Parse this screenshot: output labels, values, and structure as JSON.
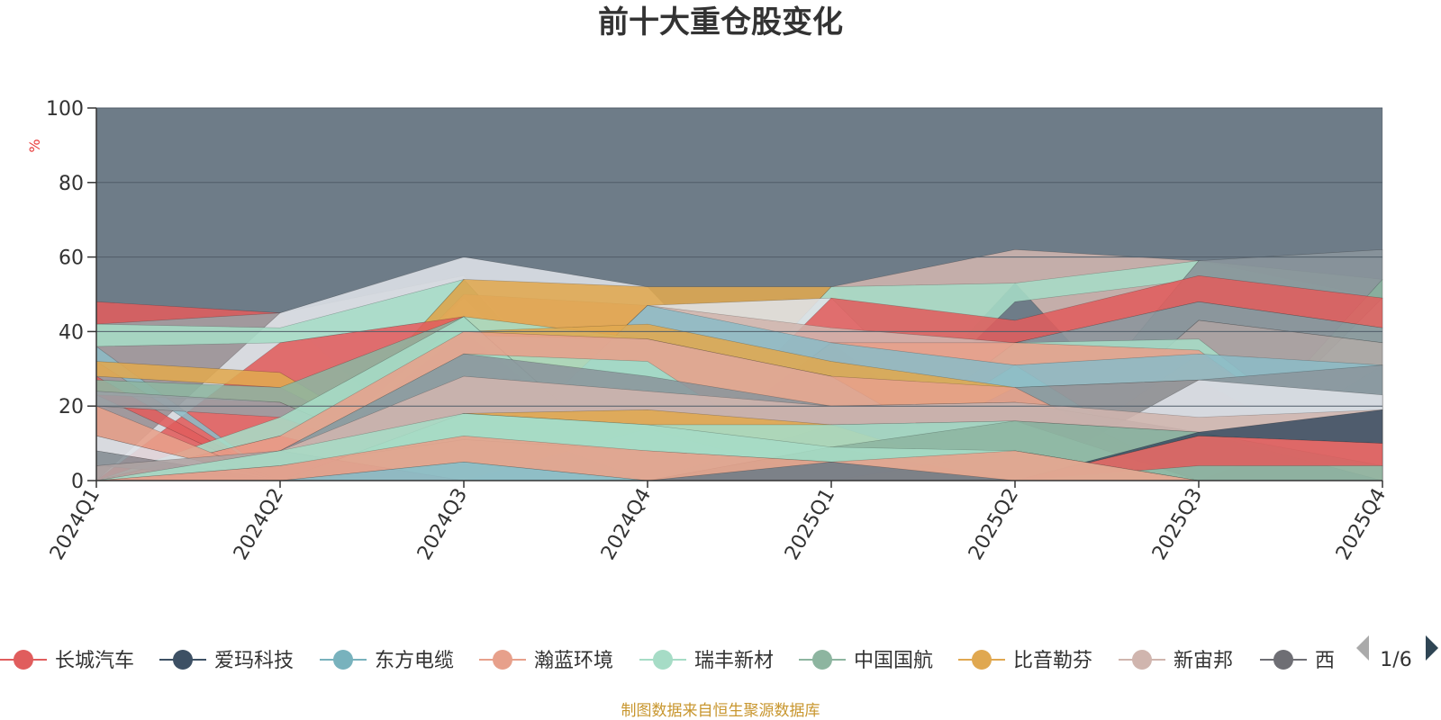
{
  "chart_data": {
    "type": "area",
    "stacked": true,
    "title": "前十大重仓股变化",
    "y_unit": "%",
    "ylim": [
      0,
      100
    ],
    "yticks": [
      0,
      20,
      40,
      60,
      80,
      100
    ],
    "categories": [
      "2024Q1",
      "2024Q2",
      "2024Q3",
      "2024Q4",
      "2025Q1",
      "2025Q2",
      "2025Q3",
      "2025Q4"
    ],
    "grid": true,
    "series": [
      {
        "name": "长城汽车",
        "color": "#e05d5d"
      },
      {
        "name": "爱玛科技",
        "color": "#3d5064"
      },
      {
        "name": "东方电缆",
        "color": "#78b2bd"
      },
      {
        "name": "瀚蓝环境",
        "color": "#e7a08b"
      },
      {
        "name": "瑞丰新材",
        "color": "#a6dcc6"
      },
      {
        "name": "中国国航",
        "color": "#8db5a0"
      },
      {
        "name": "比音勒芬",
        "color": "#e0a850"
      },
      {
        "name": "新宙邦",
        "color": "#d0b5ae"
      },
      {
        "name": "西"
      }
    ],
    "bands": [
      {
        "color": "#6e7c88",
        "top": [
          100,
          100,
          100,
          100,
          100,
          100,
          100,
          100
        ],
        "bottom": [
          0,
          0,
          0,
          0,
          0,
          0,
          0,
          0
        ],
        "opacity": 1
      },
      {
        "color": "#e05d5d",
        "top": [
          48,
          45,
          0,
          0,
          0,
          0,
          0,
          0
        ],
        "bottom": [
          0,
          0,
          0,
          0,
          0,
          0,
          0,
          0
        ]
      },
      {
        "color": "#9aa0a5",
        "top": [
          42,
          45,
          55,
          0,
          0,
          0,
          0,
          0
        ],
        "bottom": [
          0,
          0,
          0,
          0,
          0,
          0,
          0,
          0
        ]
      },
      {
        "color": "#dfe3e8",
        "top": [
          0,
          45,
          60,
          52,
          0,
          0,
          0,
          0
        ],
        "bottom": [
          0,
          0,
          0,
          0,
          0,
          0,
          0,
          0
        ]
      },
      {
        "color": "#a6dcc6",
        "top": [
          42,
          41,
          54,
          0,
          0,
          0,
          0,
          0
        ],
        "bottom": [
          36,
          37,
          44,
          0,
          0,
          0,
          0,
          0
        ]
      },
      {
        "color": "#8db5a0",
        "top": [
          0,
          0,
          54,
          0,
          0,
          0,
          0,
          0
        ],
        "bottom": [
          0,
          0,
          49,
          0,
          0,
          0,
          0,
          0
        ]
      },
      {
        "color": "#e7a08b",
        "top": [
          0,
          0,
          50,
          47,
          0,
          0,
          0,
          0
        ],
        "bottom": [
          0,
          0,
          44,
          0,
          0,
          0,
          0,
          0
        ]
      },
      {
        "color": "#e0a850",
        "top": [
          0,
          0,
          54,
          52,
          52,
          0,
          0,
          0
        ],
        "bottom": [
          0,
          0,
          0,
          47,
          0,
          0,
          0,
          0
        ]
      },
      {
        "color": "#d0b5ae",
        "top": [
          0,
          0,
          0,
          0,
          52,
          62,
          59,
          0
        ],
        "bottom": [
          0,
          0,
          0,
          0,
          0,
          53,
          0,
          0
        ]
      },
      {
        "color": "#a6dcc6",
        "top": [
          0,
          0,
          0,
          0,
          52,
          53,
          59,
          49
        ],
        "bottom": [
          0,
          0,
          0,
          0,
          0,
          48,
          54,
          0
        ]
      },
      {
        "color": "#8db5a0",
        "top": [
          0,
          0,
          0,
          0,
          0,
          0,
          59,
          54
        ],
        "bottom": [
          0,
          0,
          0,
          0,
          0,
          0,
          0,
          49
        ]
      },
      {
        "color": "#8b959c",
        "top": [
          0,
          0,
          0,
          0,
          0,
          0,
          59,
          62
        ],
        "bottom": [
          0,
          0,
          0,
          0,
          0,
          0,
          0,
          54
        ]
      },
      {
        "color": "#dfe3e8",
        "top": [
          0,
          0,
          0,
          47,
          49,
          0,
          0,
          0
        ],
        "bottom": [
          0,
          0,
          0,
          0,
          41,
          0,
          0,
          0
        ]
      },
      {
        "color": "#e05d5d",
        "top": [
          0,
          0,
          0,
          0,
          49,
          43,
          55,
          49
        ],
        "bottom": [
          0,
          0,
          0,
          0,
          0,
          37,
          48,
          41
        ]
      },
      {
        "color": "#d0b5ae",
        "top": [
          0,
          0,
          0,
          47,
          41,
          37,
          0,
          0
        ],
        "bottom": [
          0,
          0,
          0,
          0,
          37,
          0,
          0,
          0
        ]
      },
      {
        "color": "#8b959c",
        "top": [
          0,
          0,
          0,
          0,
          0,
          37,
          48,
          41
        ],
        "bottom": [
          0,
          0,
          0,
          0,
          0,
          0,
          43,
          37
        ]
      },
      {
        "color": "#aea3a3",
        "top": [
          0,
          0,
          0,
          0,
          0,
          0,
          43,
          37
        ],
        "bottom": [
          0,
          0,
          0,
          0,
          0,
          0,
          0,
          31
        ]
      },
      {
        "color": "#a6dcc6",
        "top": [
          0,
          0,
          0,
          0,
          0,
          37,
          38,
          0
        ],
        "bottom": [
          0,
          0,
          0,
          0,
          0,
          0,
          34,
          0
        ]
      },
      {
        "color": "#e7a08b",
        "top": [
          0,
          0,
          0,
          0,
          37,
          37,
          35,
          0
        ],
        "bottom": [
          0,
          0,
          0,
          0,
          0,
          31,
          0,
          0
        ]
      },
      {
        "color": "#8cbbc6",
        "top": [
          0,
          0,
          0,
          47,
          37,
          31,
          34,
          31
        ],
        "bottom": [
          0,
          0,
          40,
          0,
          0,
          25,
          27,
          0
        ]
      },
      {
        "color": "#e05d5d",
        "top": [
          0,
          37,
          44,
          0,
          0,
          0,
          0,
          0
        ],
        "bottom": [
          0,
          0,
          0,
          0,
          0,
          0,
          0,
          0
        ]
      },
      {
        "color": "#8cbbc6",
        "top": [
          36,
          0,
          0,
          0,
          0,
          0,
          0,
          0
        ],
        "bottom": [
          32,
          0,
          0,
          0,
          0,
          0,
          0,
          0
        ]
      },
      {
        "color": "#e0a850",
        "top": [
          32,
          29,
          0,
          0,
          0,
          0,
          0,
          0
        ],
        "bottom": [
          28,
          25,
          0,
          0,
          0,
          0,
          0,
          0
        ]
      },
      {
        "color": "#a6dcc6",
        "top": [
          0,
          0,
          44,
          38,
          28,
          0,
          0,
          0
        ],
        "bottom": [
          0,
          0,
          40,
          0,
          0,
          0,
          0,
          0
        ]
      },
      {
        "color": "#e0a850",
        "top": [
          0,
          0,
          40,
          42,
          32,
          25,
          0,
          0
        ],
        "bottom": [
          0,
          0,
          39,
          38,
          28,
          0,
          0,
          0
        ]
      },
      {
        "color": "#8b959c",
        "top": [
          0,
          0,
          0,
          0,
          0,
          25,
          27,
          31
        ],
        "bottom": [
          0,
          0,
          0,
          0,
          0,
          0,
          13,
          0
        ]
      },
      {
        "color": "#dfe3e8",
        "top": [
          0,
          0,
          0,
          0,
          0,
          0,
          27,
          23
        ],
        "bottom": [
          0,
          0,
          0,
          0,
          0,
          0,
          0,
          19
        ]
      },
      {
        "color": "#e05d5d",
        "top": [
          28,
          0,
          0,
          0,
          0,
          0,
          0,
          0
        ],
        "bottom": [
          23,
          0,
          0,
          0,
          0,
          0,
          0,
          0
        ]
      },
      {
        "color": "#8db5a0",
        "top": [
          27,
          25,
          44,
          0,
          0,
          0,
          0,
          0
        ],
        "bottom": [
          23,
          21,
          0,
          0,
          0,
          0,
          0,
          0
        ]
      },
      {
        "color": "#9aa0a5",
        "top": [
          24,
          21,
          0,
          0,
          0,
          0,
          0,
          0
        ],
        "bottom": [
          20,
          17,
          0,
          0,
          0,
          0,
          0,
          0
        ]
      },
      {
        "color": "#a6dcc6",
        "top": [
          0,
          17,
          44,
          0,
          0,
          0,
          0,
          0
        ],
        "bottom": [
          0,
          12,
          0,
          0,
          0,
          0,
          0,
          0
        ]
      },
      {
        "color": "#e7a08b",
        "top": [
          0,
          12,
          40,
          38,
          28,
          25,
          0,
          0
        ],
        "bottom": [
          0,
          8,
          34,
          32,
          0,
          0,
          0,
          0
        ]
      },
      {
        "color": "#8b959c",
        "top": [
          0,
          8,
          34,
          28,
          20,
          21,
          13,
          19
        ],
        "bottom": [
          0,
          0,
          0,
          0,
          0,
          0,
          0,
          0
        ]
      },
      {
        "color": "#d0b5ae",
        "top": [
          0,
          8,
          28,
          24,
          20,
          21,
          17,
          19
        ],
        "bottom": [
          0,
          0,
          18,
          0,
          15,
          16,
          13,
          0
        ]
      },
      {
        "color": "#e0a850",
        "top": [
          0,
          0,
          18,
          19,
          15,
          0,
          0,
          0
        ],
        "bottom": [
          0,
          0,
          0,
          14,
          0,
          0,
          0,
          0
        ]
      },
      {
        "color": "#a6dcc6",
        "top": [
          0,
          0,
          18,
          15,
          15,
          16,
          0,
          0
        ],
        "bottom": [
          0,
          0,
          0,
          0,
          9,
          0,
          0,
          0
        ]
      },
      {
        "color": "#8db5a0",
        "top": [
          0,
          0,
          0,
          0,
          9,
          16,
          13,
          4
        ],
        "bottom": [
          0,
          0,
          0,
          0,
          0,
          8,
          0,
          0
        ]
      },
      {
        "color": "#3d5064",
        "top": [
          0,
          0,
          0,
          0,
          0,
          0,
          13,
          19
        ],
        "bottom": [
          0,
          0,
          0,
          0,
          0,
          0,
          12,
          10
        ]
      },
      {
        "color": "#e05d5d",
        "top": [
          0,
          0,
          0,
          0,
          0,
          0,
          12,
          10
        ],
        "bottom": [
          0,
          0,
          0,
          0,
          0,
          0,
          4,
          4
        ]
      },
      {
        "color": "#e7a08b",
        "top": [
          20,
          0,
          0,
          0,
          0,
          0,
          0,
          0
        ],
        "bottom": [
          12,
          0,
          0,
          0,
          0,
          0,
          0,
          0
        ]
      },
      {
        "color": "#dfe3e8",
        "top": [
          12,
          0,
          0,
          0,
          0,
          0,
          0,
          0
        ],
        "bottom": [
          8,
          0,
          0,
          0,
          0,
          0,
          0,
          0
        ]
      },
      {
        "color": "#8b959c",
        "top": [
          8,
          0,
          0,
          0,
          0,
          0,
          0,
          0
        ],
        "bottom": [
          4,
          0,
          0,
          0,
          0,
          0,
          0,
          0
        ]
      },
      {
        "color": "#aea3a3",
        "top": [
          4,
          8,
          0,
          0,
          0,
          0,
          0,
          0
        ],
        "bottom": [
          0,
          0,
          0,
          0,
          0,
          0,
          0,
          0
        ]
      },
      {
        "color": "#a6dcc6",
        "top": [
          0,
          8,
          18,
          15,
          9,
          8,
          0,
          0
        ],
        "bottom": [
          0,
          4,
          11,
          8,
          5,
          0,
          0,
          0
        ]
      },
      {
        "color": "#e7a08b",
        "top": [
          0,
          4,
          12,
          8,
          5,
          8,
          0,
          0
        ],
        "bottom": [
          0,
          0,
          5,
          0,
          0,
          0,
          0,
          0
        ]
      },
      {
        "color": "#8cbbc6",
        "top": [
          0,
          0,
          5,
          0,
          0,
          0,
          0,
          0
        ],
        "bottom": [
          0,
          0,
          0,
          0,
          0,
          0,
          0,
          0
        ]
      },
      {
        "color": "#6e7c88",
        "top": [
          0,
          0,
          0,
          0,
          5,
          0,
          0,
          0
        ],
        "bottom": [
          0,
          0,
          0,
          0,
          0,
          0,
          0,
          0
        ]
      }
    ]
  },
  "legend": {
    "page": "1/6"
  },
  "source": "制图数据来自恒生聚源数据库"
}
